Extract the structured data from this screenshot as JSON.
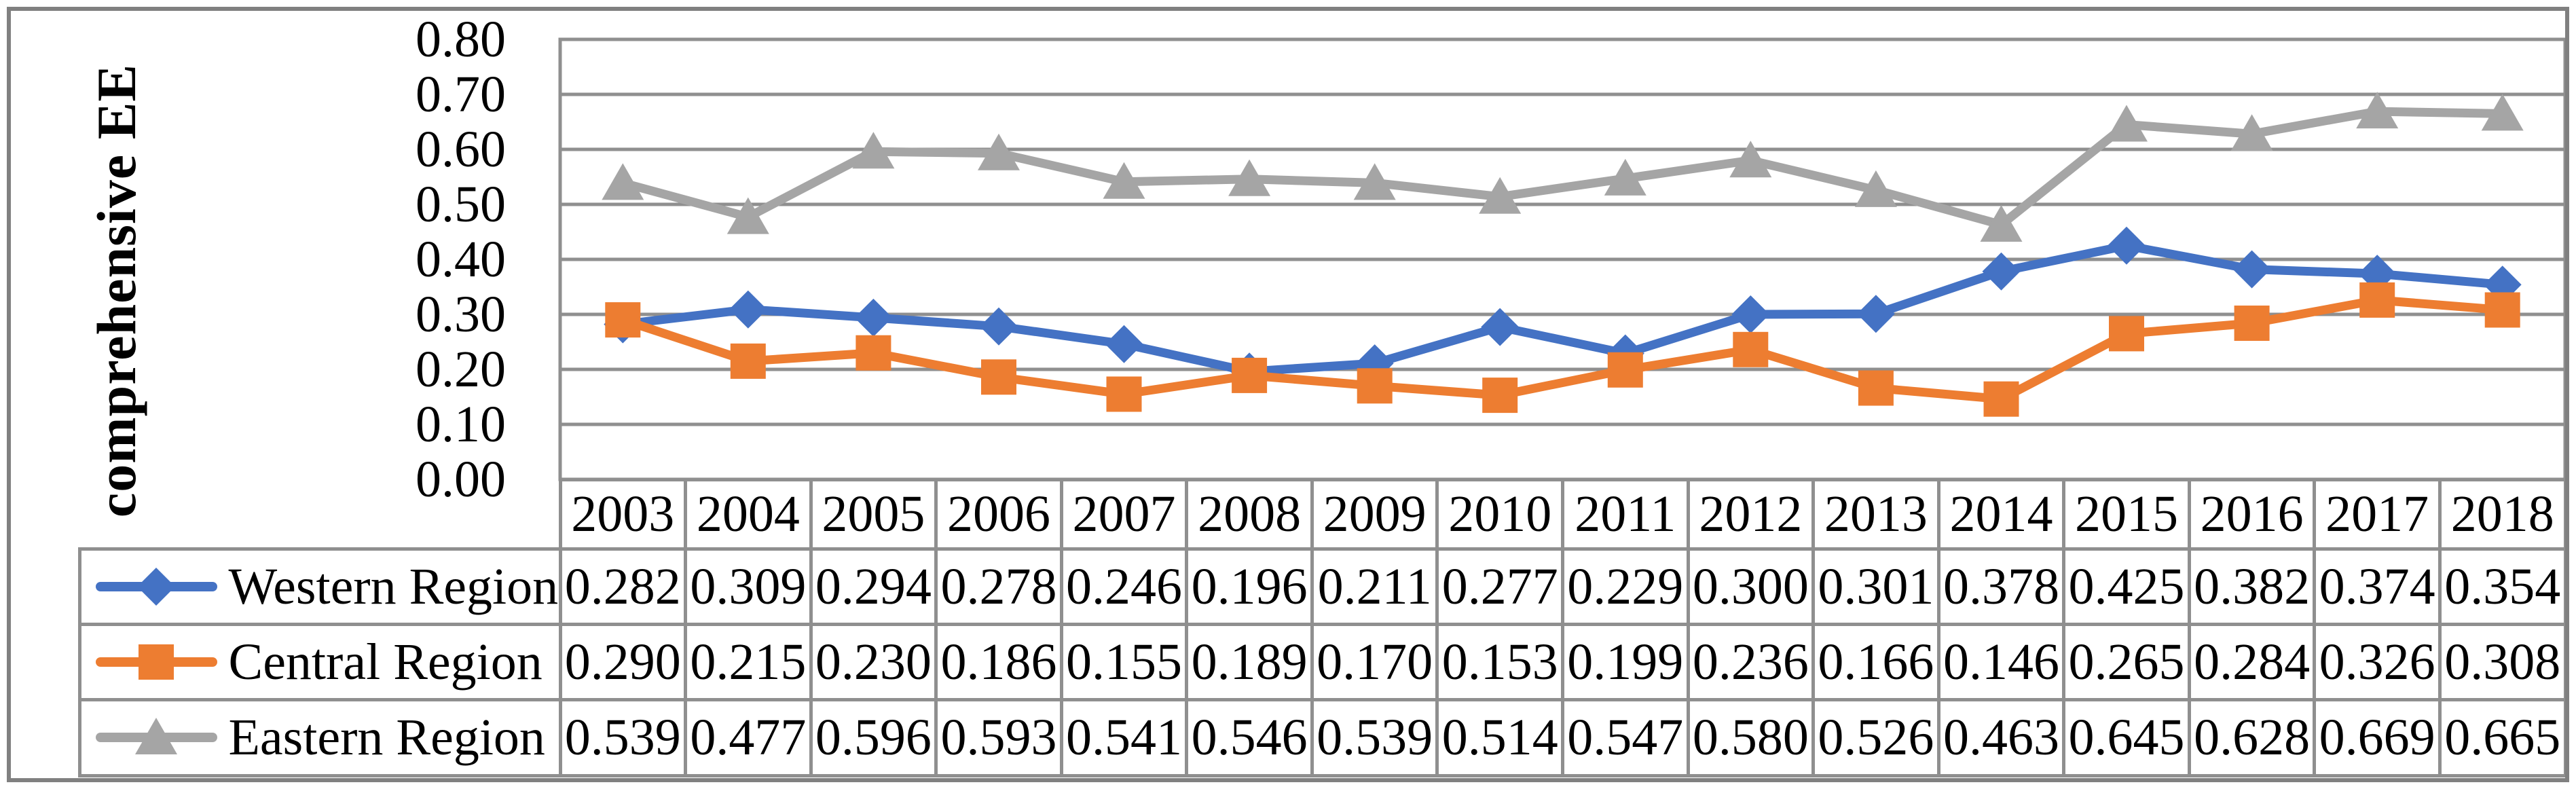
{
  "figure": {
    "background": "#FFFFFF",
    "outer_border_color": "#808080",
    "grid_color": "#8F8F8F",
    "text_color": "#000000"
  },
  "chart_data": {
    "type": "line",
    "title": "",
    "xlabel": "",
    "ylabel": "comprehensive EE",
    "ylim": [
      0,
      0.8
    ],
    "ytick_step": 0.1,
    "ytick_labels_top_to_bottom": [
      "0.80",
      "0.70",
      "0.60",
      "0.50",
      "0.40",
      "0.30",
      "0.20",
      "0.10",
      "0.00"
    ],
    "grid": true,
    "legend_position": "table-left",
    "categories": [
      2003,
      2004,
      2005,
      2006,
      2007,
      2008,
      2009,
      2010,
      2011,
      2012,
      2013,
      2014,
      2015,
      2016,
      2017,
      2018
    ],
    "series": [
      {
        "name": "Western Region",
        "color": "#4472C4",
        "marker": "diamond",
        "values": [
          0.282,
          0.309,
          0.294,
          0.278,
          0.246,
          0.196,
          0.211,
          0.277,
          0.229,
          0.3,
          0.301,
          0.378,
          0.425,
          0.382,
          0.374,
          0.354
        ]
      },
      {
        "name": "Central Region",
        "color": "#ED7D31",
        "marker": "square",
        "values": [
          0.29,
          0.215,
          0.23,
          0.186,
          0.155,
          0.189,
          0.17,
          0.153,
          0.199,
          0.236,
          0.166,
          0.146,
          0.265,
          0.284,
          0.326,
          0.308
        ]
      },
      {
        "name": "Eastern Region",
        "color": "#A5A5A5",
        "marker": "triangle",
        "values": [
          0.539,
          0.477,
          0.596,
          0.593,
          0.541,
          0.546,
          0.539,
          0.514,
          0.547,
          0.58,
          0.526,
          0.463,
          0.645,
          0.628,
          0.669,
          0.665
        ]
      }
    ]
  },
  "table": {
    "year_headers": [
      "2003",
      "2004",
      "2005",
      "2006",
      "2007",
      "2008",
      "2009",
      "2010",
      "2011",
      "2012",
      "2013",
      "2014",
      "2015",
      "2016",
      "2017",
      "2018"
    ],
    "rows": [
      {
        "label": "Western Region",
        "cells": [
          "0.282",
          "0.309",
          "0.294",
          "0.278",
          "0.246",
          "0.196",
          "0.211",
          "0.277",
          "0.229",
          "0.300",
          "0.301",
          "0.378",
          "0.425",
          "0.382",
          "0.374",
          "0.354"
        ]
      },
      {
        "label": "Central Region",
        "cells": [
          "0.290",
          "0.215",
          "0.230",
          "0.186",
          "0.155",
          "0.189",
          "0.170",
          "0.153",
          "0.199",
          "0.236",
          "0.166",
          "0.146",
          "0.265",
          "0.284",
          "0.326",
          "0.308"
        ]
      },
      {
        "label": "Eastern Region",
        "cells": [
          "0.539",
          "0.477",
          "0.596",
          "0.593",
          "0.541",
          "0.546",
          "0.539",
          "0.514",
          "0.547",
          "0.580",
          "0.526",
          "0.463",
          "0.645",
          "0.628",
          "0.669",
          "0.665"
        ]
      }
    ]
  }
}
